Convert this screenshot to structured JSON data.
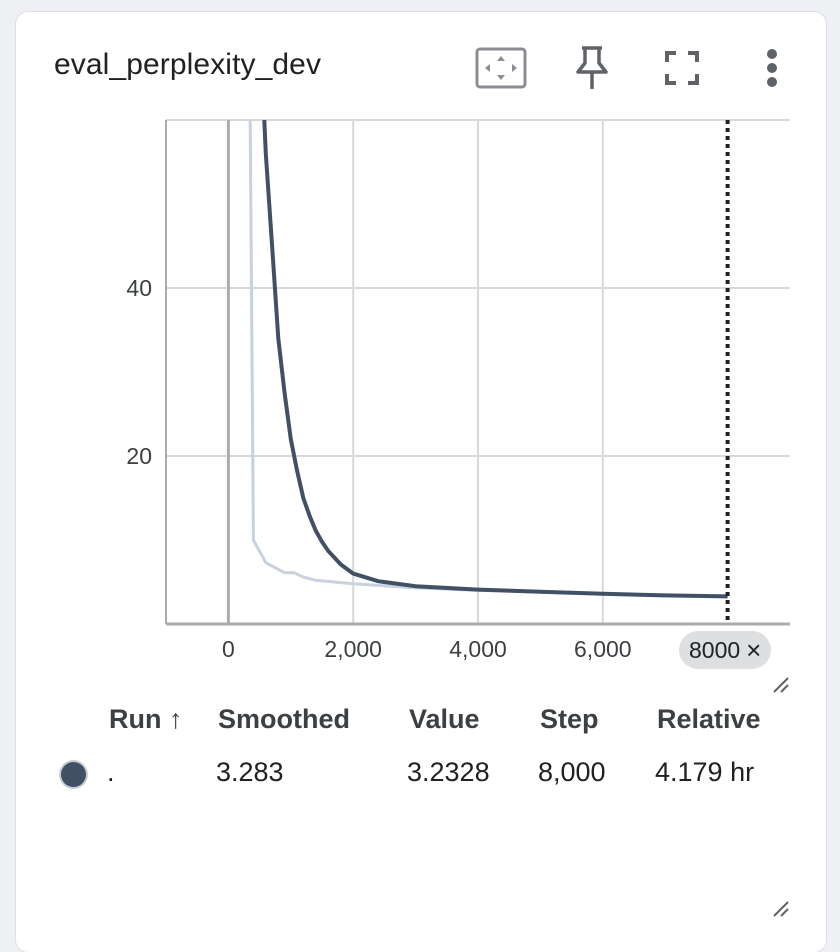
{
  "card": {
    "title": "eval_perplexity_dev"
  },
  "toolbar": {
    "fit_domain_icon": "fit-to-data-icon",
    "pin_icon": "pin-icon",
    "fullscreen_icon": "fullscreen-icon",
    "more_icon": "more-vert-icon"
  },
  "chart_data": {
    "type": "line",
    "title": "eval_perplexity_dev",
    "xlabel": "",
    "ylabel": "",
    "xlim": [
      -1000,
      9000
    ],
    "ylim": [
      0,
      60
    ],
    "x_ticks": [
      0,
      2000,
      4000,
      6000
    ],
    "x_tick_labels": [
      "0",
      "2,000",
      "4,000",
      "6,000"
    ],
    "y_ticks": [
      20,
      40
    ],
    "y_tick_labels": [
      "20",
      "40"
    ],
    "grid": true,
    "series": [
      {
        "role": "raw",
        "color": "#c9d1de",
        "x": [
          350,
          400,
          600,
          900,
          1050,
          1200,
          1400,
          2000,
          3000,
          4000,
          5000,
          6000,
          7000,
          8000
        ],
        "y": [
          60,
          10,
          7.3,
          6.1,
          6.1,
          5.6,
          5.2,
          4.8,
          4.3,
          4.0,
          3.8,
          3.55,
          3.35,
          3.23
        ]
      },
      {
        "role": "smoothed",
        "color": "#425066",
        "x": [
          575,
          600,
          700,
          800,
          900,
          1000,
          1100,
          1200,
          1300,
          1400,
          1500,
          1600,
          1800,
          2000,
          2400,
          3000,
          4000,
          5000,
          6000,
          7000,
          8000
        ],
        "y": [
          60,
          56,
          45,
          34,
          27.5,
          22,
          18.3,
          15,
          12.9,
          11.1,
          9.8,
          8.7,
          7.1,
          6.0,
          5.1,
          4.5,
          4.1,
          3.85,
          3.6,
          3.4,
          3.28
        ]
      }
    ],
    "cursor_step": 8000
  },
  "step_chip": {
    "label": "8000",
    "close_glyph": "×"
  },
  "table": {
    "headers": {
      "run": "Run ↑",
      "smoothed": "Smoothed",
      "value": "Value",
      "step": "Step",
      "relative": "Relative"
    },
    "rows": [
      {
        "color": "#425066",
        "run": ".",
        "smoothed": "3.283",
        "value": "3.2328",
        "step": "8,000",
        "relative": "4.179 hr"
      }
    ]
  }
}
